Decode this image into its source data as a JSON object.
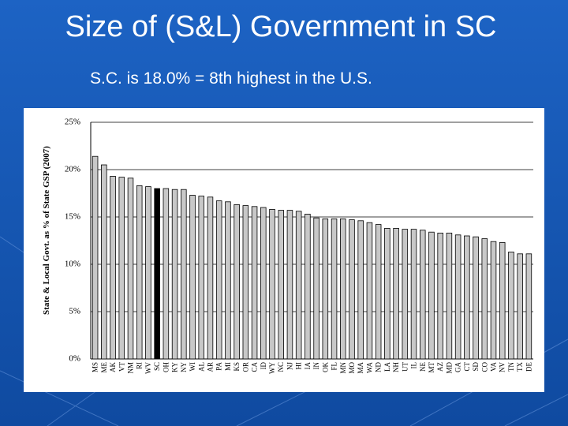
{
  "chart_data": {
    "type": "bar",
    "title": "Size of (S&L) Government in SC",
    "subtitle": "S.C. is 18.0% = 8th highest in the U.S.",
    "y_label": "State & Local Govt. as % of State GSP (2007)",
    "categories": [
      "MS",
      "ME",
      "AK",
      "VT",
      "NM",
      "RI",
      "WV",
      "SC",
      "OH",
      "KY",
      "NY",
      "WI",
      "AL",
      "AR",
      "PA",
      "MI",
      "KS",
      "OR",
      "CA",
      "ID",
      "WY",
      "NC",
      "NJ",
      "HI",
      "IA",
      "IN",
      "OK",
      "FL",
      "MN",
      "MO",
      "MA",
      "WA",
      "ND",
      "LA",
      "NH",
      "UT",
      "IL",
      "NE",
      "MT",
      "AZ",
      "MD",
      "GA",
      "CT",
      "SD",
      "CO",
      "VA",
      "NV",
      "TN",
      "TX",
      "DE"
    ],
    "values": [
      21.4,
      20.5,
      19.3,
      19.2,
      19.1,
      18.3,
      18.2,
      18.0,
      18.0,
      17.9,
      17.9,
      17.3,
      17.2,
      17.1,
      16.7,
      16.6,
      16.3,
      16.2,
      16.1,
      16.0,
      15.8,
      15.7,
      15.7,
      15.6,
      15.3,
      14.9,
      14.8,
      14.8,
      14.8,
      14.7,
      14.6,
      14.4,
      14.2,
      13.8,
      13.8,
      13.7,
      13.7,
      13.6,
      13.4,
      13.3,
      13.3,
      13.1,
      13.0,
      12.9,
      12.7,
      12.4,
      12.3,
      11.3,
      11.1,
      11.1
    ],
    "color": "#c8c8c8",
    "highlight_colors": {
      "SC": "#000000"
    },
    "ylim": [
      0,
      25
    ],
    "yticks": [
      {
        "value": 0,
        "label": "0%"
      },
      {
        "value": 5,
        "label": "5%"
      },
      {
        "value": 10,
        "label": "10%"
      },
      {
        "value": 15,
        "label": "15%"
      },
      {
        "value": 20,
        "label": "20%"
      },
      {
        "value": 25,
        "label": "25%"
      }
    ],
    "grid": true
  }
}
